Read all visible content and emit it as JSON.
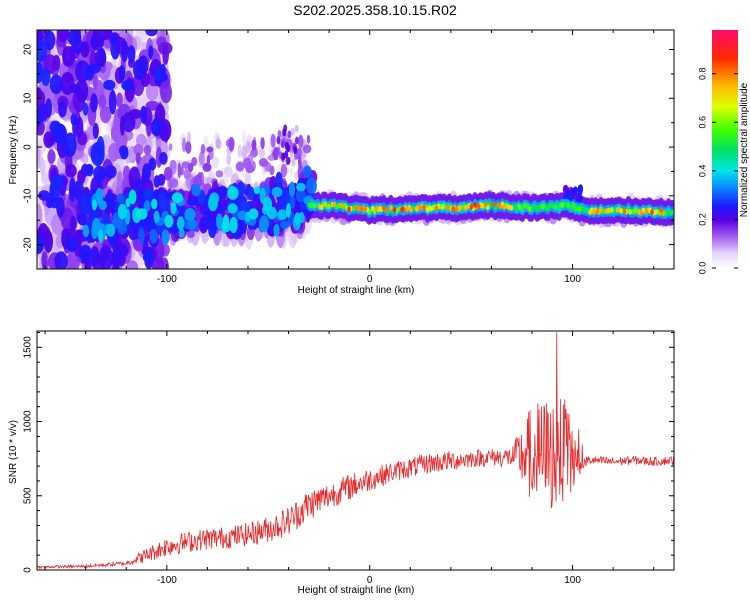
{
  "title": "S202.2025.358.10.15.R02",
  "chart_data": [
    {
      "type": "heatmap",
      "name": "spectrogram",
      "xlabel": "Height of straight line (km)",
      "ylabel": "Frequency (Hz)",
      "xlim": [
        -164,
        150
      ],
      "ylim": [
        -25,
        24
      ],
      "xticks": [
        -100,
        0,
        100
      ],
      "yticks": [
        -20,
        -10,
        0,
        10,
        20
      ],
      "colorbar": {
        "label": "Normalized spectral amplitude",
        "range": [
          0,
          0.98
        ],
        "ticks": [
          "0.0",
          "0.2",
          "0.4",
          "0.6",
          "0.8"
        ],
        "tick_values": [
          0.0,
          0.2,
          0.4,
          0.6,
          0.8
        ]
      },
      "ridge": {
        "description_values": "dominant frequency trace by height",
        "x": [
          -130,
          -100,
          -80,
          -60,
          -40,
          -30,
          -20,
          0,
          20,
          40,
          60,
          80,
          100,
          105,
          110,
          130,
          150
        ],
        "y": [
          -14,
          -14,
          -13,
          -14,
          -14,
          -12,
          -12,
          -13,
          -12.5,
          -12.5,
          -12,
          -12.5,
          -12,
          -13,
          -13,
          -13,
          -13.5
        ]
      }
    },
    {
      "type": "line",
      "name": "snr",
      "xlabel": "Height of straight line (km)",
      "ylabel": "SNR (10 * v/v)",
      "xlim": [
        -164,
        150
      ],
      "ylim": [
        0,
        1610
      ],
      "xticks": [
        -100,
        0,
        100
      ],
      "yticks": [
        0,
        500,
        1000,
        1500
      ],
      "color": "#e8282a",
      "series": [
        {
          "name": "SNR",
          "x": [
            -164,
            -140,
            -120,
            -110,
            -100,
            -90,
            -80,
            -70,
            -60,
            -50,
            -40,
            -30,
            -20,
            -10,
            0,
            10,
            20,
            30,
            40,
            50,
            60,
            70,
            80,
            90,
            100,
            104,
            108,
            120,
            130,
            140,
            150
          ],
          "y": [
            20,
            25,
            45,
            100,
            160,
            190,
            210,
            220,
            240,
            275,
            330,
            440,
            500,
            560,
            610,
            655,
            690,
            720,
            735,
            750,
            760,
            760,
            780,
            780,
            760,
            720,
            740,
            730,
            740,
            730,
            740
          ],
          "noise_amplitude": [
            8,
            10,
            15,
            50,
            70,
            70,
            75,
            75,
            80,
            90,
            100,
            110,
            90,
            90,
            80,
            70,
            70,
            70,
            70,
            60,
            60,
            70,
            350,
            400,
            300,
            60,
            30,
            30,
            30,
            30,
            30
          ]
        }
      ]
    }
  ]
}
